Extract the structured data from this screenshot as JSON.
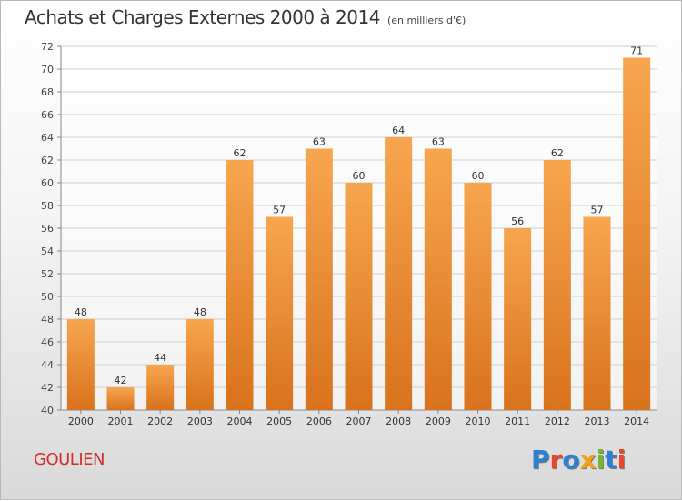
{
  "page": {
    "commune": "GOULIEN",
    "logo_text": "Proxiti",
    "logo_colors": [
      "#2f7fd3",
      "#e8462a",
      "#2f7fd3",
      "#f4a11a",
      "#76b82a",
      "#2f7fd3",
      "#e8462a"
    ]
  },
  "chart_data": {
    "type": "bar",
    "title": "Achats et Charges Externes 2000 à 2014",
    "subtitle": "(en milliers d'€)",
    "categories": [
      "2000",
      "2001",
      "2002",
      "2003",
      "2004",
      "2005",
      "2006",
      "2007",
      "2008",
      "2009",
      "2010",
      "2011",
      "2012",
      "2013",
      "2014"
    ],
    "values": [
      48,
      42,
      44,
      48,
      62,
      57,
      63,
      60,
      64,
      63,
      60,
      56,
      62,
      57,
      71
    ],
    "ylim": [
      40,
      72
    ],
    "yticks": [
      40,
      42,
      44,
      46,
      48,
      50,
      52,
      54,
      56,
      58,
      60,
      62,
      64,
      66,
      68,
      70,
      72
    ],
    "grid": true,
    "bar_color_top": "#f7a64f",
    "bar_color_bottom": "#d9721c",
    "grid_color": "#cfcfcf"
  }
}
